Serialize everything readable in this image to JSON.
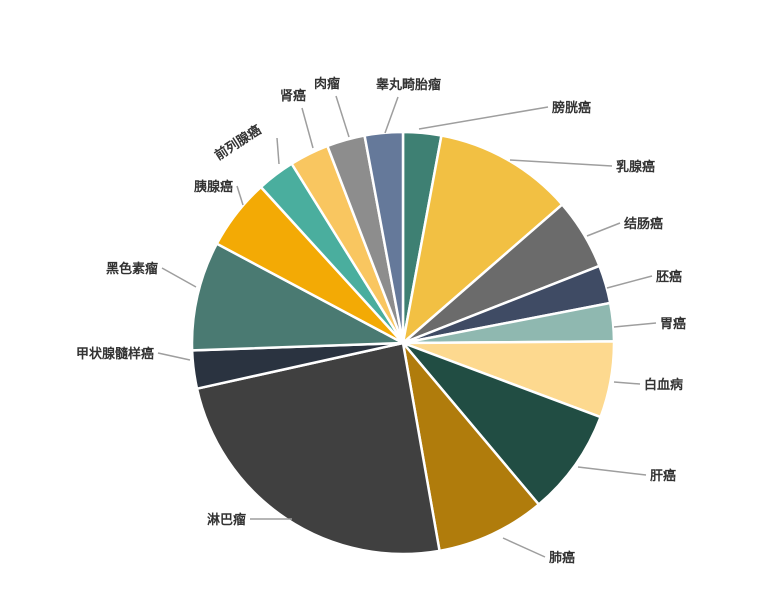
{
  "chart_data": {
    "type": "pie",
    "slices": [
      {
        "label": "膀胱癌",
        "value": 3.0,
        "color": "#3e8073"
      },
      {
        "label": "乳腺癌",
        "value": 11.0,
        "color": "#f2c043"
      },
      {
        "label": "结肠癌",
        "value": 5.6,
        "color": "#6b6b6b"
      },
      {
        "label": "胚癌",
        "value": 3.0,
        "color": "#3f4b64"
      },
      {
        "label": "胃癌",
        "value": 3.0,
        "color": "#8fb8b0"
      },
      {
        "label": "白血病",
        "value": 6.0,
        "color": "#fdd98f"
      },
      {
        "label": "肝癌",
        "value": 8.4,
        "color": "#214d43"
      },
      {
        "label": "肺癌",
        "value": 8.6,
        "color": "#b07c0c"
      },
      {
        "label": "淋巴瘤",
        "value": 25.0,
        "color": "#404040"
      },
      {
        "label": "甲状腺髓样癌",
        "value": 3.0,
        "color": "#2a3340"
      },
      {
        "label": "黑色素瘤",
        "value": 8.6,
        "color": "#4a7a72"
      },
      {
        "label": "胰腺癌",
        "value": 5.6,
        "color": "#f3aa05"
      },
      {
        "label": "前列腺癌",
        "value": 3.0,
        "color": "#4aae9e"
      },
      {
        "label": "肾癌",
        "value": 3.1,
        "color": "#f9c660"
      },
      {
        "label": "肉瘤",
        "value": 3.0,
        "color": "#8d8d8d"
      },
      {
        "label": "睾丸畸胎瘤",
        "value": 3.0,
        "color": "#65799a"
      }
    ]
  }
}
